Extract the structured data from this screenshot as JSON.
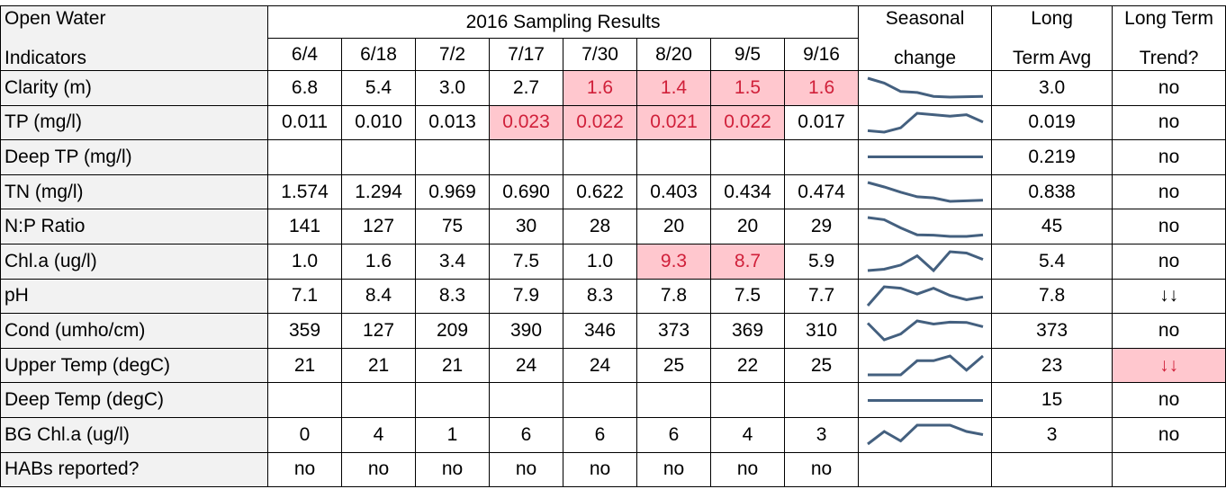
{
  "header": {
    "indicator": [
      "Open Water",
      "Indicators"
    ],
    "group": "2016 Sampling Results",
    "dates": [
      "6/4",
      "6/18",
      "7/2",
      "7/17",
      "7/30",
      "8/20",
      "9/5",
      "9/16"
    ],
    "seasonal": [
      "Seasonal",
      "change"
    ],
    "avg": [
      "Long",
      "Term Avg"
    ],
    "trend": [
      "Long Term",
      "Trend?"
    ]
  },
  "sparkline_color": "#44607f",
  "highlight_color": "#ffc7ce",
  "highlight_text_color": "#d0203a",
  "rows": [
    {
      "label": "Clarity (m)",
      "values": [
        "6.8",
        "5.4",
        "3.0",
        "2.7",
        "1.6",
        "1.4",
        "1.5",
        "1.6"
      ],
      "avg": "3.0",
      "trend": "no",
      "highlight": [
        4,
        5,
        6,
        7
      ]
    },
    {
      "label": "TP (mg/l)",
      "values": [
        "0.011",
        "0.010",
        "0.013",
        "0.023",
        "0.022",
        "0.021",
        "0.022",
        "0.017"
      ],
      "avg": "0.019",
      "trend": "no",
      "highlight": [
        3,
        4,
        5,
        6
      ]
    },
    {
      "label": "Deep TP (mg/l)",
      "values": [
        null,
        null,
        null,
        null,
        null,
        null,
        null,
        null
      ],
      "avg": "0.219",
      "trend": "no"
    },
    {
      "label": "TN (mg/l)",
      "values": [
        "1.574",
        "1.294",
        "0.969",
        "0.690",
        "0.622",
        "0.403",
        "0.434",
        "0.474"
      ],
      "avg": "0.838",
      "trend": "no"
    },
    {
      "label": "N:P Ratio",
      "values": [
        "141",
        "127",
        "75",
        "30",
        "28",
        "20",
        "20",
        "29"
      ],
      "avg": "45",
      "trend": "no"
    },
    {
      "label": "Chl.a (ug/l)",
      "values": [
        "1.0",
        "1.6",
        "3.4",
        "7.5",
        "1.0",
        "9.3",
        "8.7",
        "5.9"
      ],
      "avg": "5.4",
      "trend": "no",
      "highlight": [
        5,
        6
      ]
    },
    {
      "label": "pH",
      "values": [
        "7.1",
        "8.4",
        "8.3",
        "7.9",
        "8.3",
        "7.8",
        "7.5",
        "7.7"
      ],
      "avg": "7.8",
      "trend": "↓↓"
    },
    {
      "label": "Cond (umho/cm)",
      "values": [
        "359",
        "127",
        "209",
        "390",
        "346",
        "373",
        "369",
        "310"
      ],
      "avg": "373",
      "trend": "no"
    },
    {
      "label": "Upper Temp (degC)",
      "values": [
        "21",
        "21",
        "21",
        "24",
        "24",
        "25",
        "22",
        "25"
      ],
      "avg": "23",
      "trend": "↓↓",
      "trend_highlight": true
    },
    {
      "label": "Deep Temp (degC)",
      "values": [
        null,
        null,
        null,
        null,
        null,
        null,
        null,
        null
      ],
      "avg": "15",
      "trend": "no"
    },
    {
      "label": "BG Chl.a (ug/l)",
      "values": [
        "0",
        "4",
        "1",
        "6",
        "6",
        "6",
        "4",
        "3"
      ],
      "avg": "3",
      "trend": "no"
    },
    {
      "label": "HABs reported?",
      "values": [
        "no",
        "no",
        "no",
        "no",
        "no",
        "no",
        "no",
        "no"
      ],
      "avg": null,
      "trend": null,
      "no_sparkline": true
    }
  ]
}
